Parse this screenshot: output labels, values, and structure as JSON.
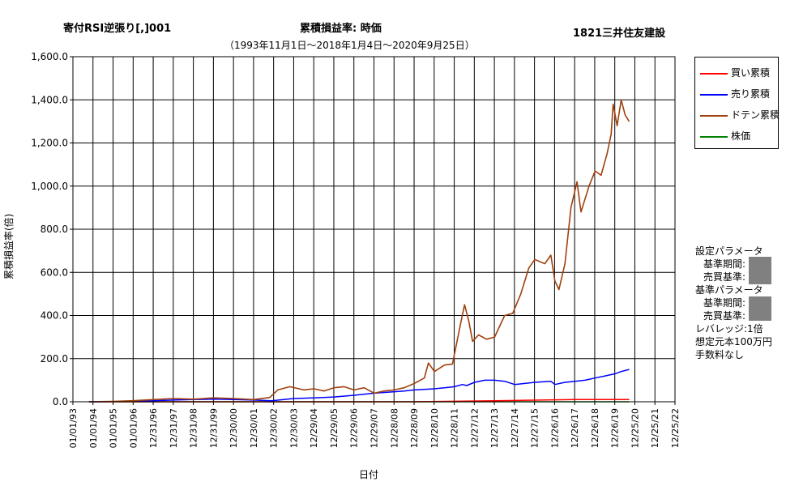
{
  "header": {
    "left_title": "寄付RSI逆張り[,]001",
    "center_title": "累積損益率:  時価",
    "right_title": "1821三井住友建設",
    "subtitle": "（1993年11月1日～2018年1月4日～2020年9月25日）"
  },
  "legend": {
    "items": [
      {
        "label": "買い累積",
        "color": "#ff0000"
      },
      {
        "label": "売り累積",
        "color": "#0000ff"
      },
      {
        "label": "ドテン累積",
        "color": "#a0400c"
      },
      {
        "label": "株価",
        "color": "#008000"
      }
    ]
  },
  "params": {
    "heading1": "設定パラメータ",
    "period1": "基準期間:",
    "criteria1": "売買基準:",
    "heading2": "基準パラメータ",
    "period2": "基準期間:",
    "criteria2": "売買基準:",
    "leverage": "レバレッジ:1倍",
    "capital": "想定元本100万円",
    "fee": "手数料なし"
  },
  "chart_data": {
    "type": "line",
    "xlabel": "日付",
    "ylabel": "累積損益率(倍)",
    "ylim": [
      0,
      1600
    ],
    "yticks": [
      "0.0",
      "200.0",
      "400.0",
      "600.0",
      "800.0",
      "1,000.0",
      "1,200.0",
      "1,400.0",
      "1,600.0"
    ],
    "x_ticks": [
      "01/01/93",
      "01/01/94",
      "01/01/95",
      "01/01/96",
      "12/31/96",
      "12/31/97",
      "12/31/98",
      "12/31/99",
      "12/30/00",
      "12/30/01",
      "12/30/02",
      "12/30/03",
      "12/29/04",
      "12/29/05",
      "12/29/06",
      "12/29/07",
      "12/28/08",
      "12/28/09",
      "12/28/10",
      "12/28/11",
      "12/27/12",
      "12/27/13",
      "12/27/14",
      "12/27/15",
      "12/26/16",
      "12/26/17",
      "12/26/18",
      "12/26/19",
      "12/25/20",
      "12/25/21",
      "12/25/22"
    ],
    "grid": true,
    "legend_position": "right",
    "series": [
      {
        "name": "買い累積",
        "x": [
          1993.8,
          1998.0,
          2005.0,
          2010.0,
          2014.0,
          2018.0,
          2020.7
        ],
        "values": [
          0,
          0,
          0,
          0,
          5,
          10,
          10
        ]
      },
      {
        "name": "売り累積",
        "x": [
          1993.8,
          1996.0,
          1997.0,
          1998.0,
          1999.0,
          2000.0,
          2001.0,
          2002.0,
          2002.9,
          2003.5,
          2004.0,
          2005.0,
          2006.0,
          2007.0,
          2008.0,
          2008.8,
          2009.5,
          2010.0,
          2011.0,
          2011.5,
          2012.0,
          2012.4,
          2012.6,
          2013.0,
          2013.5,
          2014.0,
          2014.5,
          2015.0,
          2016.0,
          2016.8,
          2017.0,
          2017.5,
          2018.0,
          2018.5,
          2019.0,
          2019.5,
          2020.0,
          2020.3,
          2020.7
        ],
        "values": [
          0,
          2,
          5,
          8,
          10,
          12,
          10,
          8,
          5,
          10,
          15,
          18,
          22,
          30,
          40,
          45,
          50,
          55,
          60,
          65,
          70,
          80,
          75,
          90,
          100,
          100,
          95,
          80,
          90,
          95,
          80,
          90,
          95,
          100,
          110,
          120,
          130,
          140,
          150
        ]
      },
      {
        "name": "ドテン累積",
        "x": [
          1993.8,
          1995.0,
          1996.0,
          1997.0,
          1998.0,
          1999.0,
          2000.0,
          2001.0,
          2002.0,
          2002.8,
          2003.2,
          2003.8,
          2004.5,
          2005.0,
          2005.5,
          2006.0,
          2006.5,
          2007.0,
          2007.5,
          2008.0,
          2008.5,
          2009.0,
          2009.5,
          2010.0,
          2010.5,
          2010.7,
          2011.0,
          2011.5,
          2011.9,
          2012.3,
          2012.5,
          2012.7,
          2012.9,
          2013.2,
          2013.6,
          2014.0,
          2014.5,
          2014.9,
          2015.3,
          2015.7,
          2016.0,
          2016.5,
          2016.8,
          2017.0,
          2017.2,
          2017.5,
          2017.8,
          2018.1,
          2018.3,
          2018.7,
          2019.0,
          2019.3,
          2019.6,
          2019.8,
          2019.9,
          2020.1,
          2020.3,
          2020.5,
          2020.7
        ],
        "values": [
          0,
          2,
          5,
          10,
          15,
          12,
          18,
          15,
          10,
          20,
          55,
          70,
          55,
          60,
          50,
          65,
          70,
          55,
          65,
          40,
          50,
          55,
          65,
          85,
          110,
          180,
          140,
          170,
          175,
          360,
          450,
          380,
          280,
          310,
          290,
          300,
          400,
          410,
          500,
          620,
          660,
          640,
          680,
          560,
          520,
          640,
          900,
          1020,
          880,
          1000,
          1070,
          1050,
          1150,
          1240,
          1380,
          1280,
          1400,
          1330,
          1300
        ]
      },
      {
        "name": "株価",
        "x": [
          1993.8,
          2000.0,
          2010.0,
          2020.7
        ],
        "values": [
          0,
          0,
          0,
          0
        ]
      }
    ]
  }
}
